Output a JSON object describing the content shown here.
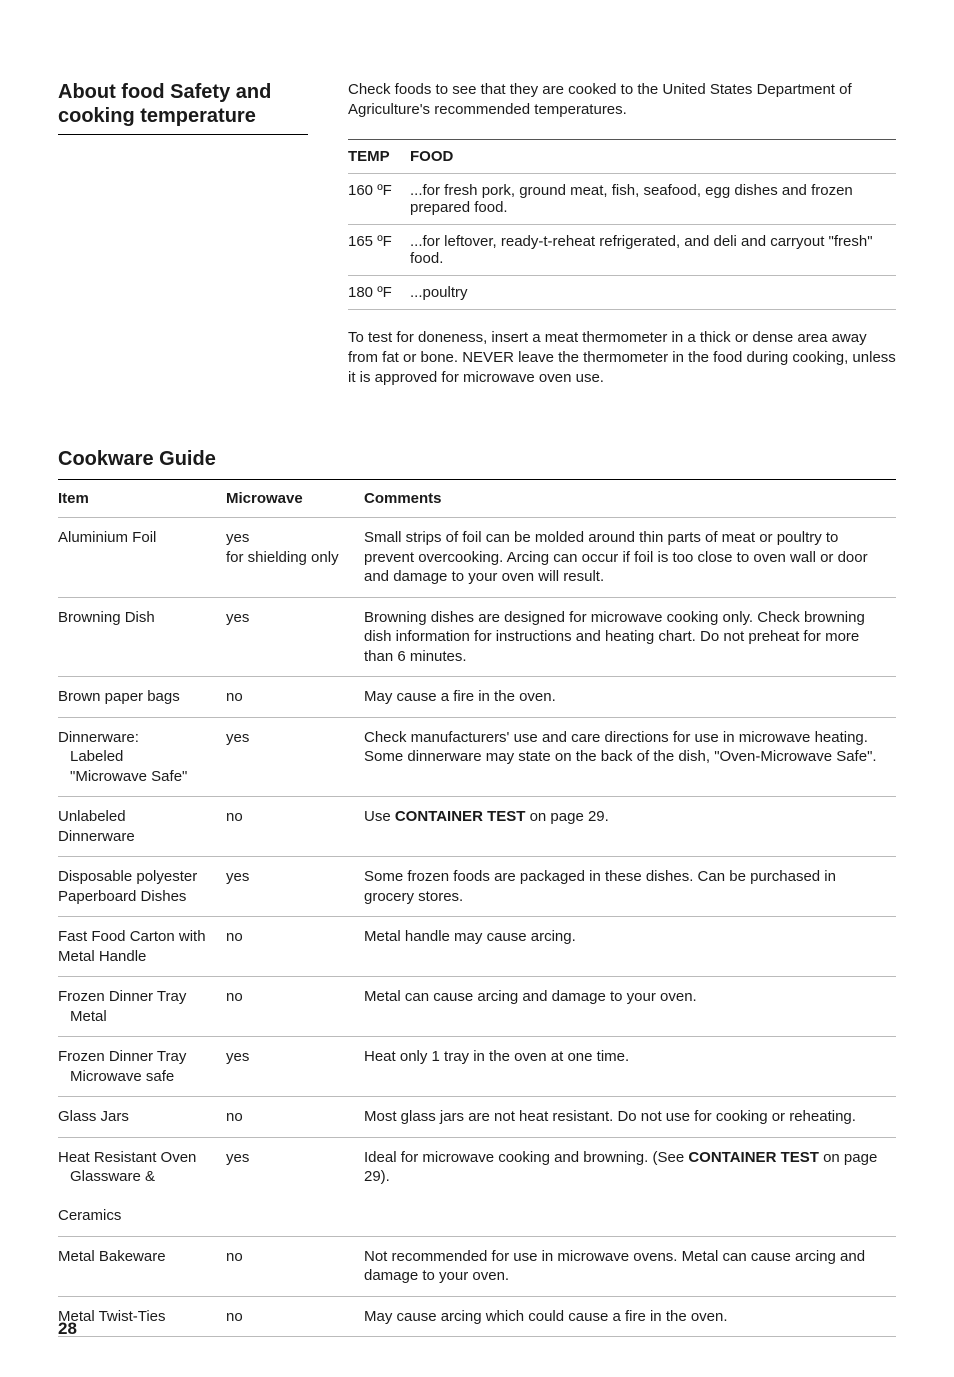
{
  "section1": {
    "title_line1": "About food Safety and",
    "title_line2": "cooking temperature",
    "intro": "Check foods to see that they are cooked to the United States Department of Agriculture's recommended temperatures.",
    "table": {
      "headers": [
        "TEMP",
        "FOOD"
      ],
      "rows": [
        {
          "temp": "160 ºF",
          "food": "...for fresh pork, ground meat, fish, seafood, egg dishes and frozen prepared food."
        },
        {
          "temp": "165 ºF",
          "food": "...for leftover, ready-t-reheat refrigerated, and deli and carryout \"fresh\" food."
        },
        {
          "temp": "180 ºF",
          "food": "...poultry"
        }
      ]
    },
    "post": "To test for doneness, insert a meat thermometer in a thick or dense area away from fat or bone. NEVER leave the thermometer in the food during cooking, unless it is approved for microwave oven use."
  },
  "section2": {
    "title": "Cookware Guide",
    "headers": [
      "Item",
      "Microwave",
      "Comments"
    ],
    "rows": [
      {
        "item_line1": "Aluminium Foil",
        "microwave_line1": "yes",
        "microwave_line2": "for shielding only",
        "comments": "Small strips of foil can be molded around thin parts of meat or poultry to prevent overcooking. Arcing can occur if foil is too close to oven wall or door and damage to your oven will result."
      },
      {
        "item_line1": "Browning Dish",
        "microwave_line1": "yes",
        "comments": "Browning dishes are designed for microwave cooking only. Check browning dish information for instructions and heating chart. Do not preheat for more than 6 minutes."
      },
      {
        "item_line1": "Brown paper bags",
        "microwave_line1": "no",
        "comments": "May cause a fire in the oven."
      },
      {
        "item_line1": "Dinnerware:",
        "item_sub1": "Labeled",
        "item_sub2": "\"Microwave Safe\"",
        "microwave_line1": "yes",
        "comments": "Check manufacturers' use and care directions for use in microwave heating. Some dinnerware may state on the back of the dish, \"Oven-Microwave Safe\"."
      },
      {
        "item_line1": "Unlabeled",
        "item_line2": "Dinnerware",
        "microwave_line1": "no",
        "comments_pre": "Use ",
        "comments_bold": "CONTAINER TEST",
        "comments_post": " on page 29."
      },
      {
        "item_line1": "Disposable polyester",
        "item_line2": "Paperboard Dishes",
        "microwave_line1": "yes",
        "comments": "Some frozen foods are packaged in these dishes. Can be purchased in grocery stores."
      },
      {
        "item_line1": "Fast Food Carton with",
        "item_line2": "Metal Handle",
        "microwave_line1": "no",
        "comments": "Metal handle may cause arcing."
      },
      {
        "item_line1": "Frozen Dinner Tray",
        "item_sub1": "Metal",
        "microwave_line1": "no",
        "comments": "Metal can cause arcing and damage to your oven."
      },
      {
        "item_line1": "Frozen Dinner Tray",
        "item_sub1": "Microwave safe",
        "microwave_line1": "yes",
        "comments": "Heat only 1 tray in the oven at one time."
      },
      {
        "item_line1": "Glass Jars",
        "microwave_line1": "no",
        "comments": "Most glass jars are not heat resistant. Do not use for cooking or reheating."
      },
      {
        "item_line1": "Heat Resistant Oven",
        "item_sub1": "Glassware &",
        "item_line3": "Ceramics",
        "microwave_line1": "yes",
        "comments_pre": "Ideal for microwave cooking and browning. (See ",
        "comments_bold": "CONTAINER TEST",
        "comments_post": " on page 29)."
      },
      {
        "item_line1": "Metal Bakeware",
        "microwave_line1": "no",
        "comments": "Not recommended for use in microwave ovens. Metal can cause arcing and damage to your oven."
      },
      {
        "item_line1": "Metal Twist-Ties",
        "microwave_line1": "no",
        "comments": "May cause arcing which could cause a fire in the oven."
      }
    ]
  },
  "page_number": "28"
}
